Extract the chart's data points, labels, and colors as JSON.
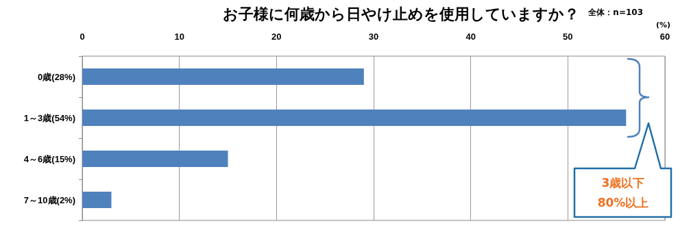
{
  "chart_data": {
    "type": "bar",
    "orientation": "horizontal",
    "title": "お子様に何歳から日やけ止めを使用していますか？",
    "xlabel": "(%)",
    "categories": [
      "0歳(28%)",
      "1～3歳(54%)",
      "4～6歳(15%)",
      "7～10歳(2%)"
    ],
    "values": [
      29,
      56,
      15,
      3
    ],
    "color": "#4f81bd",
    "xlim": [
      0,
      60
    ],
    "xticks": [
      0,
      10,
      20,
      30,
      40,
      50,
      60
    ],
    "grid": "x",
    "annotations": [
      "全体：n=103",
      "3歳以下\n80%以上"
    ]
  }
}
